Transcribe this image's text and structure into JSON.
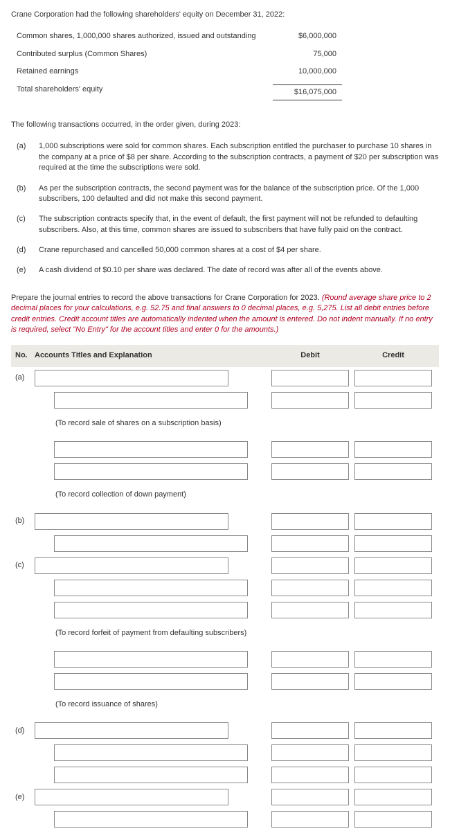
{
  "intro": "Crane Corporation had the following shareholders' equity on December 31, 2022:",
  "equity": {
    "rows": [
      {
        "label": "Common shares, 1,000,000 shares authorized, issued and outstanding",
        "value": "$6,000,000"
      },
      {
        "label": "Contributed surplus (Common Shares)",
        "value": "75,000"
      },
      {
        "label": "Retained earnings",
        "value": "10,000,000"
      },
      {
        "label": "Total shareholders' equity",
        "value": "$16,075,000"
      }
    ]
  },
  "txn_intro": "The following transactions occurred, in the order given, during 2023:",
  "transactions": [
    {
      "letter": "(a)",
      "text": "1,000 subscriptions were sold for common shares. Each subscription entitled the purchaser to purchase 10 shares in the company at a price of $8 per share. According to the subscription contracts, a payment of $20 per subscription was required at the time the subscriptions were sold."
    },
    {
      "letter": "(b)",
      "text": "As per the subscription contracts, the second payment was for the balance of the subscription price. Of the 1,000 subscribers, 100 defaulted and did not make this second payment."
    },
    {
      "letter": "(c)",
      "text": "The subscription contracts specify that, in the event of default, the first payment will not be refunded to defaulting subscribers. Also, at this time, common shares are issued to subscribers that have fully paid on the contract."
    },
    {
      "letter": "(d)",
      "text": "Crane repurchased and cancelled 50,000 common shares at a cost of $4 per share."
    },
    {
      "letter": "(e)",
      "text": "A cash dividend of $0.10 per share was declared. The date of record was after all of the events above."
    }
  ],
  "instructions_plain": "Prepare the journal entries to record the above transactions for Crane Corporation for 2023. ",
  "instructions_ital": "(Round average share price to 2 decimal places for your calculations, e.g. 52.75 and final answers to 0 decimal places, e.g. 5,275. List all debit entries before credit entries. Credit account titles are automatically indented when the amount is entered. Do not indent manually. If no entry is required, select \"No Entry\" for the account titles and enter 0 for the amounts.)",
  "je_header": {
    "no": "No.",
    "acct": "Accounts Titles and Explanation",
    "debit": "Debit",
    "credit": "Credit"
  },
  "notes": {
    "a1": "(To record sale of shares on a subscription basis)",
    "a2": "(To record collection of down payment)",
    "c1": "(To record forfeit of payment from defaulting subscribers)",
    "c2": "(To record issuance of shares)"
  },
  "letters": {
    "a": "(a)",
    "b": "(b)",
    "c": "(c)",
    "d": "(d)",
    "e": "(e)"
  }
}
